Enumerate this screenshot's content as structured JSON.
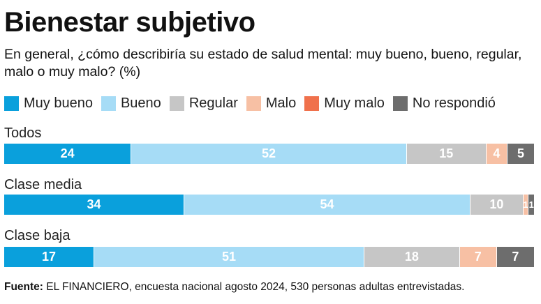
{
  "header": {
    "title": "Bienestar subjetivo",
    "subtitle": "En general, ¿cómo describiría su estado de salud mental: muy bueno, bueno, regular, malo o muy malo? (%)"
  },
  "chart_data": {
    "type": "bar",
    "orientation": "horizontal",
    "stacked": true,
    "categories": [
      "Todos",
      "Clase media",
      "Clase baja"
    ],
    "series": [
      {
        "name": "Muy bueno",
        "color": "#0aa0dc",
        "values": [
          24,
          34,
          17
        ]
      },
      {
        "name": "Bueno",
        "color": "#a6dcf6",
        "values": [
          52,
          54,
          51
        ]
      },
      {
        "name": "Regular",
        "color": "#c6c6c6",
        "values": [
          15,
          10,
          18
        ]
      },
      {
        "name": "Malo",
        "color": "#f7c0a4",
        "values": [
          4,
          1,
          7
        ]
      },
      {
        "name": "Muy malo",
        "color": "#f0714c",
        "values": [
          0,
          0,
          0
        ]
      },
      {
        "name": "No respondió",
        "color": "#6d6d6d",
        "values": [
          5,
          1,
          7
        ]
      }
    ],
    "legend_position": "top",
    "grid": false
  },
  "footer": {
    "source_label": "Fuente:",
    "source_text": " EL FINANCIERO, encuesta nacional agosto 2024, 530 personas adultas entrevistadas."
  }
}
